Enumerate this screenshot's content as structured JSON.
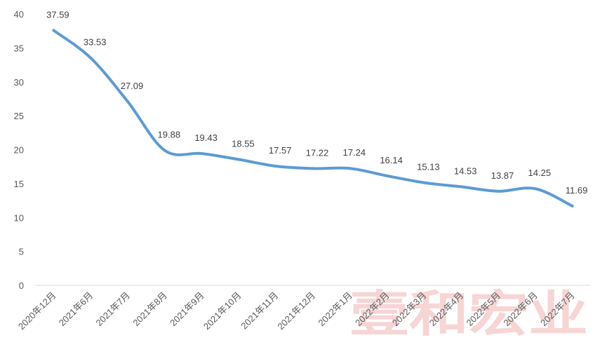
{
  "chart_data": {
    "type": "line",
    "categories": [
      "2020年12月",
      "2021年6月",
      "2021年7月",
      "2021年8月",
      "2021年9月",
      "2021年10月",
      "2021年11月",
      "2021年12月",
      "2022年1月",
      "2022年2月",
      "2022年3月",
      "2022年4月",
      "2022年5月",
      "2022年6月",
      "2022年7月"
    ],
    "series": [
      {
        "values": [
          37.59,
          33.53,
          27.09,
          19.88,
          19.43,
          18.55,
          17.57,
          17.22,
          17.24,
          16.14,
          15.13,
          14.53,
          13.87,
          14.25,
          11.69
        ]
      }
    ],
    "data_labels": [
      "37.59",
      "33.53",
      "27.09",
      "19.88",
      "19.43",
      "18.55",
      "17.57",
      "17.22",
      "17.24",
      "16.14",
      "15.13",
      "14.53",
      "13.87",
      "14.25",
      "11.69"
    ],
    "y_ticks": [
      "0",
      "5",
      "10",
      "15",
      "20",
      "25",
      "30",
      "35",
      "40"
    ],
    "ylim": [
      0,
      40
    ],
    "grid": false,
    "line_color": "#5b9bd5",
    "smooth": true
  },
  "watermark": "壹和宏业"
}
